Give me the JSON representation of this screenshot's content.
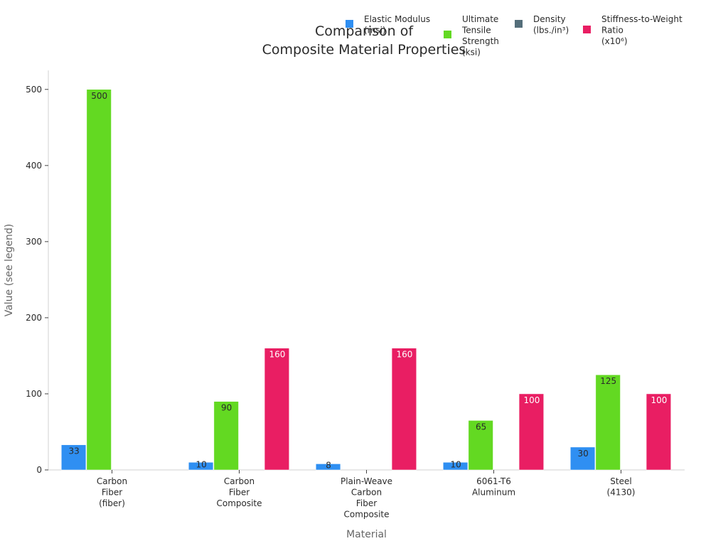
{
  "chart_data": {
    "type": "bar",
    "title_lines": [
      "Comparison of",
      "Composite Material Properties"
    ],
    "xlabel": "Material",
    "ylabel": "Value (see legend)",
    "ylim": [
      0,
      525
    ],
    "yticks": [
      0,
      100,
      200,
      300,
      400,
      500
    ],
    "categories": [
      [
        "Carbon",
        "Fiber",
        "(fiber)"
      ],
      [
        "Carbon",
        "Fiber",
        "Composite"
      ],
      [
        "Plain-Weave",
        "Carbon",
        "Fiber",
        "Composite"
      ],
      [
        "6061-T6",
        "Aluminum"
      ],
      [
        "Steel",
        "(4130)"
      ]
    ],
    "series": [
      {
        "name_lines": [
          "Elastic Modulus",
          "(msi)"
        ],
        "color": "#2f8ff2",
        "values": [
          33,
          10,
          8,
          10,
          30
        ],
        "labels": [
          "33",
          "10",
          "8",
          "10",
          "30"
        ],
        "label_color": "#2a2a2a"
      },
      {
        "name_lines": [
          "Ultimate",
          "Tensile",
          "Strength",
          "(ksi)"
        ],
        "color": "#63d922",
        "values": [
          500,
          90,
          0,
          65,
          125
        ],
        "labels": [
          "500",
          "90",
          "",
          "65",
          "125"
        ],
        "label_color": "#2a2a2a"
      },
      {
        "name_lines": [
          "Density",
          "(lbs./in³)"
        ],
        "color": "#546e7a",
        "values": [
          0,
          0,
          0,
          0,
          0
        ],
        "labels": [
          "",
          "",
          "",
          "",
          ""
        ],
        "label_color": "#2a2a2a"
      },
      {
        "name_lines": [
          "Stiffness-to-Weight",
          "Ratio",
          "(x10⁶)"
        ],
        "color": "#e91e63",
        "values": [
          0,
          160,
          160,
          100,
          100
        ],
        "labels": [
          "",
          "160",
          "160",
          "100",
          "100"
        ],
        "label_color": "#ffffff"
      }
    ],
    "grid": false,
    "legend_position": "top-right"
  }
}
